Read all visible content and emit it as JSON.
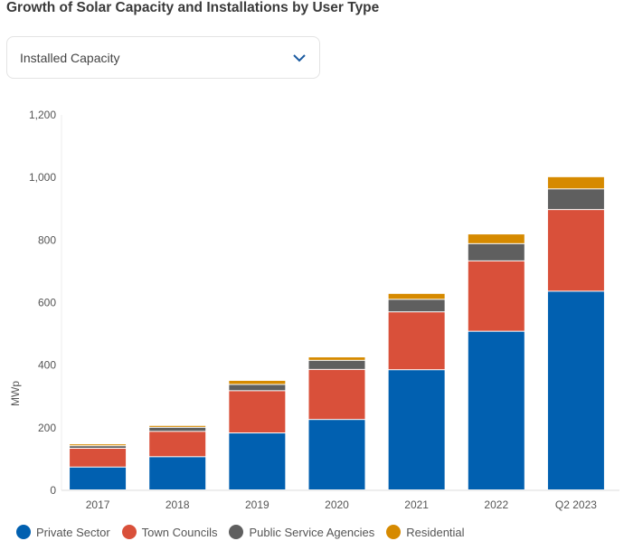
{
  "title": "Growth of Solar Capacity and Installations by User Type",
  "dropdown": {
    "selected": "Installed Capacity",
    "icon": "chevron-down-icon"
  },
  "chart_data": {
    "type": "bar",
    "stacked": true,
    "title": "",
    "xlabel": "",
    "ylabel": "MWp",
    "ylim": [
      0,
      1200
    ],
    "yticks": [
      0,
      200,
      400,
      600,
      800,
      1000,
      1200
    ],
    "ytick_labels": [
      "0",
      "200",
      "400",
      "600",
      "800",
      "1,000",
      "1,200"
    ],
    "grid": false,
    "legend_position": "bottom",
    "categories": [
      "2017",
      "2018",
      "2019",
      "2020",
      "2021",
      "2022",
      "Q2 2023"
    ],
    "series": [
      {
        "name": "Private Sector",
        "color": "#0160b0",
        "values": [
          73,
          106,
          182,
          225,
          384,
          507,
          635
        ]
      },
      {
        "name": "Town Councils",
        "color": "#d9503a",
        "values": [
          60,
          81,
          135,
          160,
          185,
          225,
          261
        ]
      },
      {
        "name": "Public Service Agencies",
        "color": "#5f5f5f",
        "values": [
          8,
          13,
          20,
          29,
          40,
          55,
          66
        ]
      },
      {
        "name": "Residential",
        "color": "#d68a00",
        "values": [
          6,
          6,
          13,
          11,
          19,
          31,
          39
        ]
      }
    ]
  }
}
